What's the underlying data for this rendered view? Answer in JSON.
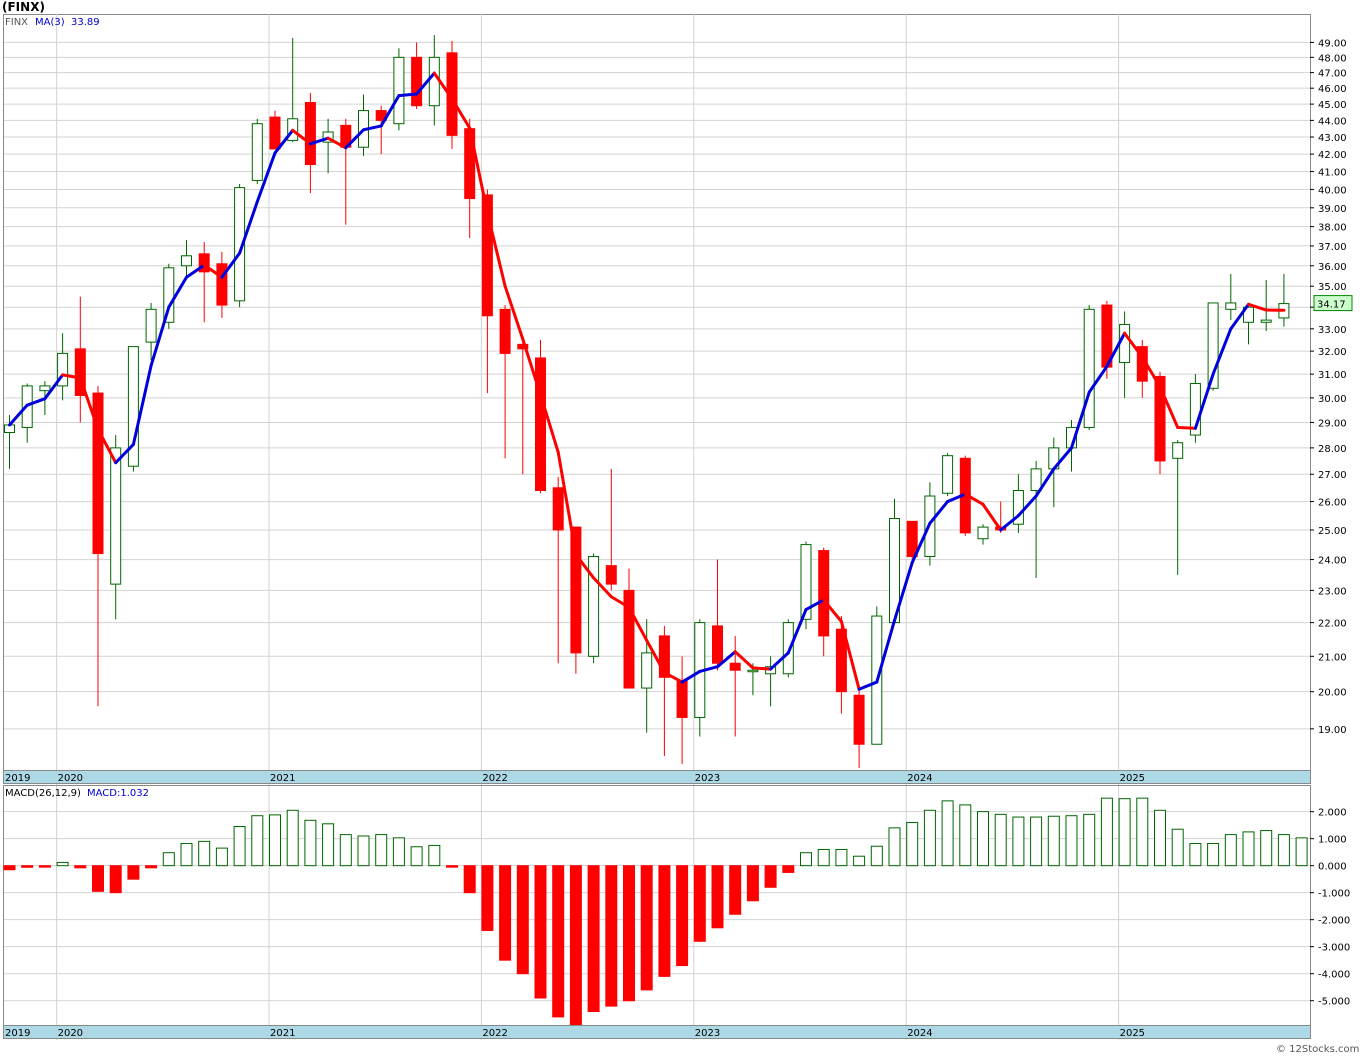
{
  "header": {
    "title": "(FINX)",
    "legend_symbol": "FINX",
    "legend_ma": "MA(3)",
    "legend_ma_value": "33.89",
    "macd_label": "MACD(26,12,9)",
    "macd_value": "MACD:1.032",
    "last_price": "34.17",
    "watermark": "© 12Stocks.com"
  },
  "colors": {
    "up": "#006600",
    "down": "#ff0000",
    "ma_up": "#0000dd",
    "ma_down": "#ff0000",
    "axis_band": "#add8e6",
    "grid": "#d3d3d3",
    "price_label_bg": "#ccffcc"
  },
  "chart_data": [
    {
      "type": "candlestick",
      "y_tick_labels": [
        "49.00",
        "48.00",
        "47.00",
        "46.00",
        "45.00",
        "44.00",
        "43.00",
        "42.00",
        "41.00",
        "40.00",
        "39.00",
        "38.00",
        "37.00",
        "36.00",
        "35.00",
        "34.00",
        "33.00",
        "32.00",
        "31.00",
        "30.00",
        "29.00",
        "28.00",
        "27.00",
        "26.00",
        "25.00",
        "24.00",
        "23.00",
        "22.00",
        "21.00",
        "20.00",
        "19.00"
      ],
      "y_ticks": [
        49,
        48,
        47,
        46,
        45,
        44,
        43,
        42,
        41,
        40,
        39,
        38,
        37,
        36,
        35,
        34,
        33,
        32,
        31,
        30,
        29,
        28,
        27,
        26,
        25,
        24,
        23,
        22,
        21,
        20,
        19
      ],
      "ylim": [
        18,
        50.4
      ],
      "y_scale": "log",
      "x_year_labels": [
        {
          "label": "2019",
          "index": -0.2
        },
        {
          "label": "2020",
          "index": 3
        },
        {
          "label": "2021",
          "index": 15
        },
        {
          "label": "2022",
          "index": 27
        },
        {
          "label": "2023",
          "index": 39
        },
        {
          "label": "2024",
          "index": 51
        },
        {
          "label": "2025",
          "index": 63
        }
      ],
      "candles": [
        {
          "o": 28.6,
          "h": 29.3,
          "l": 27.2,
          "c": 28.9
        },
        {
          "o": 28.8,
          "h": 30.6,
          "l": 28.2,
          "c": 30.5
        },
        {
          "o": 30.3,
          "h": 30.7,
          "l": 29.3,
          "c": 30.5
        },
        {
          "o": 30.5,
          "h": 32.8,
          "l": 29.9,
          "c": 31.9
        },
        {
          "o": 32.1,
          "h": 34.5,
          "l": 29.0,
          "c": 30.1
        },
        {
          "o": 30.2,
          "h": 30.5,
          "l": 19.6,
          "c": 24.2
        },
        {
          "o": 23.2,
          "h": 28.5,
          "l": 22.1,
          "c": 28.0
        },
        {
          "o": 27.3,
          "h": 32.2,
          "l": 27.1,
          "c": 32.2
        },
        {
          "o": 32.4,
          "h": 34.2,
          "l": 31.6,
          "c": 33.9
        },
        {
          "o": 33.3,
          "h": 36.1,
          "l": 33.0,
          "c": 35.9
        },
        {
          "o": 36.0,
          "h": 37.3,
          "l": 35.5,
          "c": 36.5
        },
        {
          "o": 36.6,
          "h": 37.2,
          "l": 33.3,
          "c": 35.7
        },
        {
          "o": 36.1,
          "h": 36.7,
          "l": 33.5,
          "c": 34.1
        },
        {
          "o": 34.3,
          "h": 40.3,
          "l": 34.0,
          "c": 40.1
        },
        {
          "o": 40.5,
          "h": 44.1,
          "l": 40.3,
          "c": 43.8
        },
        {
          "o": 44.2,
          "h": 44.6,
          "l": 42.6,
          "c": 42.3
        },
        {
          "o": 42.8,
          "h": 49.3,
          "l": 42.7,
          "c": 44.1
        },
        {
          "o": 45.1,
          "h": 45.7,
          "l": 39.8,
          "c": 41.4
        },
        {
          "o": 42.7,
          "h": 44.1,
          "l": 40.9,
          "c": 43.3
        },
        {
          "o": 43.7,
          "h": 44.1,
          "l": 38.1,
          "c": 42.4
        },
        {
          "o": 42.4,
          "h": 45.6,
          "l": 41.9,
          "c": 44.6
        },
        {
          "o": 44.6,
          "h": 44.9,
          "l": 42.0,
          "c": 44.0
        },
        {
          "o": 43.8,
          "h": 48.6,
          "l": 43.4,
          "c": 48.0
        },
        {
          "o": 48.0,
          "h": 49.0,
          "l": 44.7,
          "c": 44.9
        },
        {
          "o": 44.9,
          "h": 49.5,
          "l": 43.7,
          "c": 48.0
        },
        {
          "o": 48.3,
          "h": 49.1,
          "l": 42.3,
          "c": 43.1
        },
        {
          "o": 43.5,
          "h": 44.1,
          "l": 37.4,
          "c": 39.5
        },
        {
          "o": 39.7,
          "h": 40.0,
          "l": 30.2,
          "c": 33.6
        },
        {
          "o": 33.9,
          "h": 34.1,
          "l": 27.6,
          "c": 31.9
        },
        {
          "o": 32.3,
          "h": 32.5,
          "l": 27.0,
          "c": 32.1
        },
        {
          "o": 31.7,
          "h": 32.5,
          "l": 26.3,
          "c": 26.4
        },
        {
          "o": 26.5,
          "h": 26.9,
          "l": 20.8,
          "c": 25.0
        },
        {
          "o": 25.1,
          "h": 25.1,
          "l": 20.5,
          "c": 21.1
        },
        {
          "o": 21.0,
          "h": 24.2,
          "l": 20.8,
          "c": 24.1
        },
        {
          "o": 23.8,
          "h": 27.2,
          "l": 23.0,
          "c": 23.2
        },
        {
          "o": 23.0,
          "h": 23.7,
          "l": 20.1,
          "c": 20.1
        },
        {
          "o": 20.1,
          "h": 22.1,
          "l": 18.9,
          "c": 21.1
        },
        {
          "o": 21.6,
          "h": 21.9,
          "l": 18.3,
          "c": 20.4
        },
        {
          "o": 20.3,
          "h": 21.0,
          "l": 18.1,
          "c": 19.3
        },
        {
          "o": 19.3,
          "h": 22.1,
          "l": 18.8,
          "c": 22.0
        },
        {
          "o": 21.9,
          "h": 24.0,
          "l": 20.6,
          "c": 20.8
        },
        {
          "o": 20.8,
          "h": 21.6,
          "l": 18.8,
          "c": 20.6
        },
        {
          "o": 20.6,
          "h": 20.8,
          "l": 19.9,
          "c": 20.6
        },
        {
          "o": 20.5,
          "h": 21.0,
          "l": 19.6,
          "c": 20.7
        },
        {
          "o": 20.5,
          "h": 22.1,
          "l": 20.4,
          "c": 22.0
        },
        {
          "o": 22.1,
          "h": 24.6,
          "l": 21.8,
          "c": 24.5
        },
        {
          "o": 24.3,
          "h": 24.4,
          "l": 21.0,
          "c": 21.6
        },
        {
          "o": 21.8,
          "h": 22.2,
          "l": 19.4,
          "c": 20.0
        },
        {
          "o": 19.9,
          "h": 20.1,
          "l": 18.0,
          "c": 18.6
        },
        {
          "o": 18.6,
          "h": 22.5,
          "l": 18.6,
          "c": 22.2
        },
        {
          "o": 22.0,
          "h": 26.1,
          "l": 22.0,
          "c": 25.4
        },
        {
          "o": 25.3,
          "h": 25.3,
          "l": 23.8,
          "c": 24.1
        },
        {
          "o": 24.1,
          "h": 26.7,
          "l": 23.8,
          "c": 26.2
        },
        {
          "o": 26.3,
          "h": 27.8,
          "l": 26.2,
          "c": 27.7
        },
        {
          "o": 27.6,
          "h": 27.7,
          "l": 24.8,
          "c": 24.9
        },
        {
          "o": 24.7,
          "h": 25.2,
          "l": 24.5,
          "c": 25.1
        },
        {
          "o": 25.1,
          "h": 26.0,
          "l": 24.9,
          "c": 25.0
        },
        {
          "o": 25.2,
          "h": 27.0,
          "l": 24.9,
          "c": 26.4
        },
        {
          "o": 26.4,
          "h": 27.5,
          "l": 23.4,
          "c": 27.2
        },
        {
          "o": 27.2,
          "h": 28.4,
          "l": 25.8,
          "c": 28.0
        },
        {
          "o": 28.0,
          "h": 29.1,
          "l": 27.1,
          "c": 28.8
        },
        {
          "o": 28.8,
          "h": 34.1,
          "l": 28.7,
          "c": 33.9
        },
        {
          "o": 34.1,
          "h": 34.3,
          "l": 30.8,
          "c": 31.3
        },
        {
          "o": 31.5,
          "h": 33.8,
          "l": 30.0,
          "c": 33.2
        },
        {
          "o": 32.2,
          "h": 32.5,
          "l": 30.0,
          "c": 30.7
        },
        {
          "o": 30.9,
          "h": 31.1,
          "l": 27.0,
          "c": 27.5
        },
        {
          "o": 27.6,
          "h": 28.3,
          "l": 23.5,
          "c": 28.2
        },
        {
          "o": 28.5,
          "h": 31.0,
          "l": 28.2,
          "c": 30.6
        },
        {
          "o": 30.4,
          "h": 34.2,
          "l": 30.3,
          "c": 34.2
        },
        {
          "o": 33.9,
          "h": 35.6,
          "l": 33.4,
          "c": 34.2
        },
        {
          "o": 33.3,
          "h": 34.2,
          "l": 32.3,
          "c": 34.0
        },
        {
          "o": 33.3,
          "h": 35.3,
          "l": 32.9,
          "c": 33.4
        },
        {
          "o": 33.5,
          "h": 35.6,
          "l": 33.1,
          "c": 34.17
        }
      ]
    },
    {
      "type": "bar",
      "name_label": "MACD(26,12,9)",
      "y_tick_labels": [
        "2.000",
        "1.000",
        "0.000",
        "-1.000",
        "-2.000",
        "-3.000",
        "-4.000",
        "-5.000"
      ],
      "y_ticks": [
        2,
        1,
        0,
        -1,
        -2,
        -3,
        -4,
        -5
      ],
      "ylim": [
        -5.9,
        2.95
      ],
      "values": [
        -0.15,
        -0.06,
        -0.05,
        0.12,
        -0.08,
        -0.95,
        -1.0,
        -0.5,
        -0.08,
        0.48,
        0.82,
        0.9,
        0.65,
        1.45,
        1.85,
        1.88,
        2.05,
        1.68,
        1.55,
        1.15,
        1.1,
        1.15,
        1.03,
        0.7,
        0.75,
        -0.03,
        -1.0,
        -2.4,
        -3.5,
        -4.0,
        -4.9,
        -5.6,
        -5.9,
        -5.4,
        -5.2,
        -5.0,
        -4.6,
        -4.1,
        -3.7,
        -2.8,
        -2.3,
        -1.8,
        -1.3,
        -0.8,
        -0.25,
        0.48,
        0.6,
        0.6,
        0.35,
        0.72,
        1.4,
        1.6,
        2.05,
        2.4,
        2.25,
        2.0,
        1.9,
        1.8,
        1.8,
        1.83,
        1.85,
        1.9,
        2.5,
        2.48,
        2.5,
        2.05,
        1.35,
        0.82,
        0.82,
        1.15,
        1.25,
        1.3,
        1.15,
        1.03
      ]
    }
  ]
}
